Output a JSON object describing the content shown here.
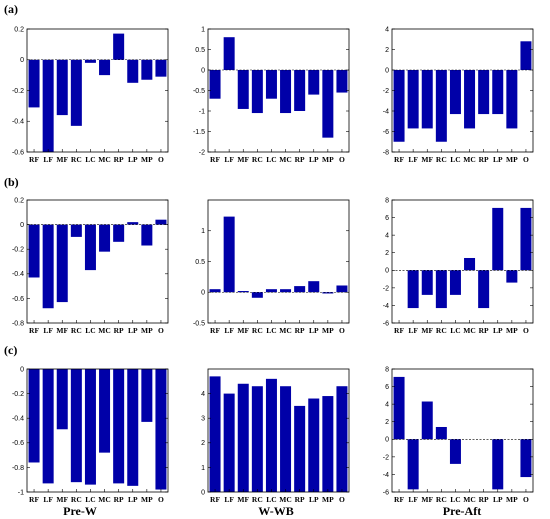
{
  "row_labels": [
    "(a)",
    "(b)",
    "(c)"
  ],
  "column_labels": [
    "Pre-W",
    "W-WB",
    "Pre-Aft"
  ],
  "chart_data": [
    {
      "type": "bar",
      "row": "(a)",
      "col": 0,
      "categories": [
        "RF",
        "LF",
        "MF",
        "RC",
        "LC",
        "MC",
        "RP",
        "LP",
        "MP",
        "O"
      ],
      "values": [
        -0.31,
        -0.6,
        -0.36,
        -0.43,
        -0.02,
        -0.1,
        0.17,
        -0.15,
        -0.13,
        -0.11
      ],
      "ylim": [
        -0.6,
        0.2
      ],
      "yticks": [
        -0.6,
        -0.4,
        -0.2,
        0,
        0.2
      ],
      "ytick_labels": [
        "-0.6",
        "-0.4",
        "-0.2",
        "0",
        "0.2"
      ]
    },
    {
      "type": "bar",
      "row": "(a)",
      "col": 1,
      "categories": [
        "RF",
        "LF",
        "MF",
        "RC",
        "LC",
        "MC",
        "RP",
        "LP",
        "MP",
        "O"
      ],
      "values": [
        -0.7,
        0.8,
        -0.95,
        -1.05,
        -0.7,
        -1.05,
        -1.0,
        -0.6,
        -1.65,
        -0.55
      ],
      "ylim": [
        -2,
        1
      ],
      "yticks": [
        -2,
        -1.5,
        -1,
        -0.5,
        0,
        0.5,
        1
      ],
      "ytick_labels": [
        "-2",
        "-1.5",
        "-1",
        "-0.5",
        "0",
        "0.5",
        "1"
      ]
    },
    {
      "type": "bar",
      "row": "(a)",
      "col": 2,
      "categories": [
        "RF",
        "LF",
        "MF",
        "RC",
        "LC",
        "MC",
        "RP",
        "LP",
        "MP",
        "O"
      ],
      "values": [
        -7.0,
        -5.7,
        -5.7,
        -7.0,
        -4.3,
        -5.7,
        -4.3,
        -4.3,
        -5.7,
        2.8
      ],
      "ylim": [
        -8,
        4
      ],
      "yticks": [
        -8,
        -6,
        -4,
        -2,
        0,
        2,
        4
      ],
      "ytick_labels": [
        "-8",
        "-6",
        "-4",
        "-2",
        "0",
        "2",
        "4"
      ]
    },
    {
      "type": "bar",
      "row": "(b)",
      "col": 0,
      "categories": [
        "RF",
        "LF",
        "MF",
        "RC",
        "LC",
        "MC",
        "RP",
        "LP",
        "MP",
        "O"
      ],
      "values": [
        -0.43,
        -0.68,
        -0.63,
        -0.1,
        -0.37,
        -0.22,
        -0.14,
        0.02,
        -0.17,
        0.04
      ],
      "ylim": [
        -0.8,
        0.2
      ],
      "yticks": [
        -0.8,
        -0.6,
        -0.4,
        -0.2,
        0,
        0.2
      ],
      "ytick_labels": [
        "-0.8",
        "-0.6",
        "-0.4",
        "-0.2",
        "0",
        "0.2"
      ]
    },
    {
      "type": "bar",
      "row": "(b)",
      "col": 1,
      "categories": [
        "RF",
        "LF",
        "MF",
        "RC",
        "LC",
        "MC",
        "RP",
        "LP",
        "MP",
        "O"
      ],
      "values": [
        0.05,
        1.23,
        0.02,
        -0.09,
        0.05,
        0.05,
        0.1,
        0.18,
        -0.02,
        0.11
      ],
      "ylim": [
        -0.5,
        1.5
      ],
      "yticks": [
        -0.5,
        0,
        0.5,
        1
      ],
      "ytick_labels": [
        "-0.5",
        "0",
        "0.5",
        "1"
      ]
    },
    {
      "type": "bar",
      "row": "(b)",
      "col": 2,
      "categories": [
        "RF",
        "LF",
        "MF",
        "RC",
        "LC",
        "MC",
        "RP",
        "LP",
        "MP",
        "O"
      ],
      "values": [
        0,
        -4.3,
        -2.8,
        -4.3,
        -2.8,
        1.4,
        -4.3,
        7.1,
        -1.4,
        7.1
      ],
      "ylim": [
        -6,
        8
      ],
      "yticks": [
        -6,
        -4,
        -2,
        0,
        2,
        4,
        6,
        8
      ],
      "ytick_labels": [
        "-6",
        "-4",
        "-2",
        "0",
        "2",
        "4",
        "6",
        "8"
      ]
    },
    {
      "type": "bar",
      "row": "(c)",
      "col": 0,
      "categories": [
        "RF",
        "LF",
        "MF",
        "RC",
        "LC",
        "MC",
        "RP",
        "LP",
        "MP",
        "O"
      ],
      "values": [
        -0.76,
        -0.93,
        -0.49,
        -0.92,
        -0.94,
        -0.68,
        -0.93,
        -0.95,
        -0.43,
        -0.98
      ],
      "ylim": [
        -1,
        0
      ],
      "yticks": [
        -1,
        -0.8,
        -0.6,
        -0.4,
        -0.2,
        0
      ],
      "ytick_labels": [
        "-1",
        "-0.8",
        "-0.6",
        "-0.4",
        "-0.2",
        "0"
      ]
    },
    {
      "type": "bar",
      "row": "(c)",
      "col": 1,
      "categories": [
        "RF",
        "LF",
        "MF",
        "RC",
        "LC",
        "MC",
        "RP",
        "LP",
        "MP",
        "O"
      ],
      "values": [
        4.7,
        4.0,
        4.4,
        4.3,
        4.6,
        4.3,
        3.5,
        3.8,
        3.9,
        4.3
      ],
      "ylim": [
        0,
        5
      ],
      "yticks": [
        0,
        1,
        2,
        3,
        4
      ],
      "ytick_labels": [
        "0",
        "1",
        "2",
        "3",
        "4"
      ]
    },
    {
      "type": "bar",
      "row": "(c)",
      "col": 2,
      "categories": [
        "RF",
        "LF",
        "MF",
        "RC",
        "LC",
        "MC",
        "RP",
        "LP",
        "MP",
        "O"
      ],
      "values": [
        7.1,
        -5.7,
        4.3,
        1.4,
        -2.8,
        0,
        0,
        -5.7,
        0,
        -4.3
      ],
      "ylim": [
        -6,
        8
      ],
      "yticks": [
        -6,
        -4,
        -2,
        0,
        2,
        4,
        6,
        8
      ],
      "ytick_labels": [
        "-6",
        "-4",
        "-2",
        "0",
        "2",
        "4",
        "6",
        "8"
      ]
    }
  ]
}
